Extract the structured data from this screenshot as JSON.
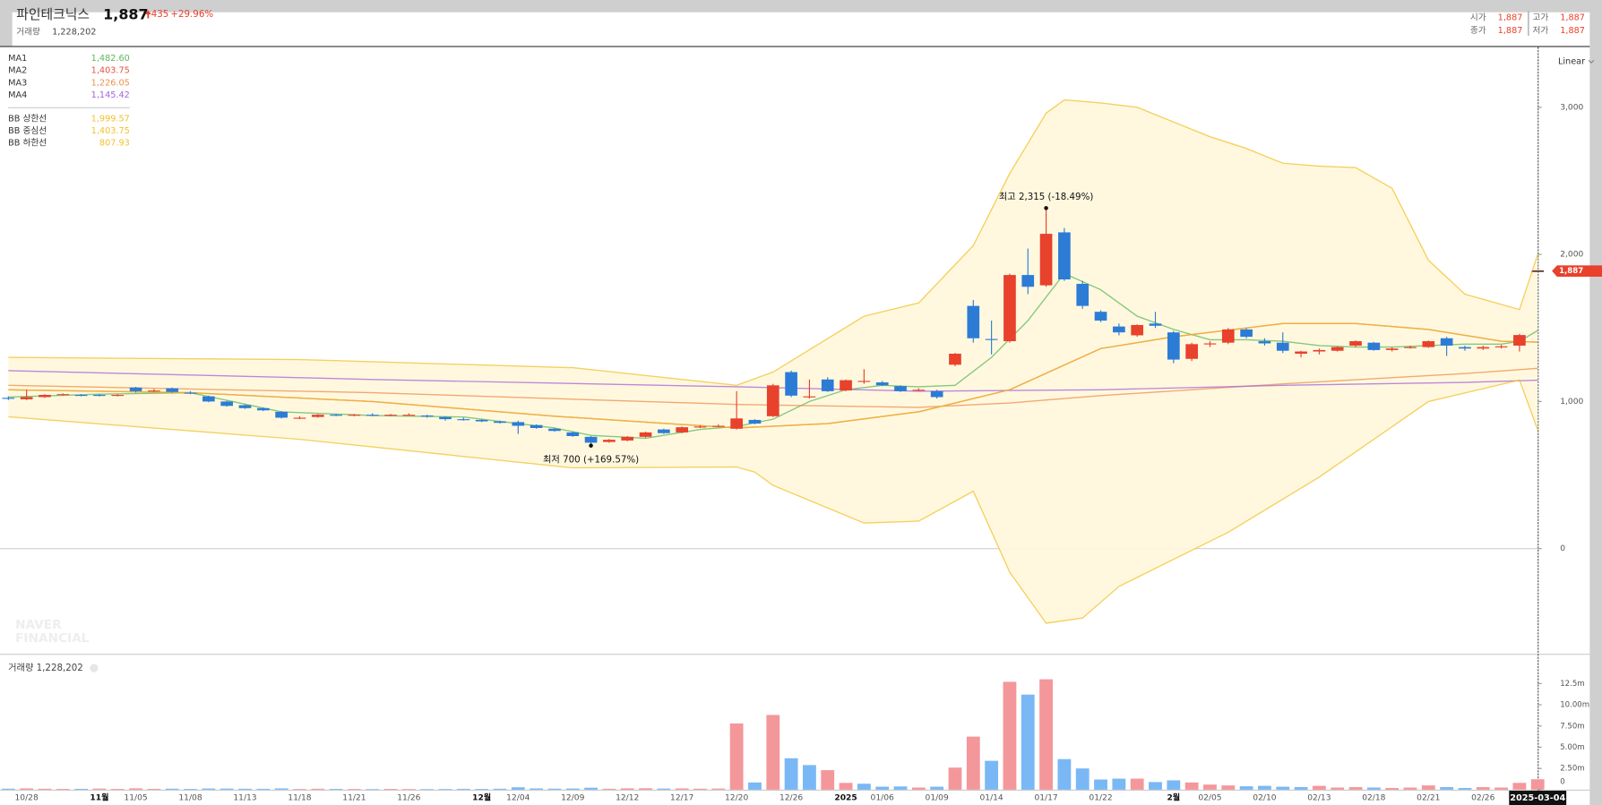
{
  "header": {
    "name": "파인테크닉스",
    "price": "1,887",
    "change": "435",
    "change_pct": "+29.96%",
    "volume_label": "거래량",
    "volume": "1,228,202",
    "quotes": [
      {
        "label": "시가",
        "value": "1,887"
      },
      {
        "label": "고가",
        "value": "1,887"
      },
      {
        "label": "종가",
        "value": "1,887"
      },
      {
        "label": "저가",
        "value": "1,887"
      }
    ]
  },
  "watermark": [
    "NAVER",
    "FINANCIAL"
  ],
  "chart_data": {
    "type": "candlestick",
    "scale": "Linear",
    "last_label": "1,887",
    "up_color": "#e8412c",
    "down_color": "#2c7cd6",
    "categories": [
      null,
      "10/28",
      null,
      null,
      null,
      "11월",
      null,
      "11/05",
      null,
      null,
      "11/08",
      null,
      null,
      "11/13",
      null,
      null,
      "11/18",
      null,
      null,
      "11/21",
      null,
      null,
      "11/26",
      null,
      null,
      null,
      "12월",
      null,
      "12/04",
      null,
      null,
      "12/09",
      null,
      null,
      "12/12",
      null,
      null,
      "12/17",
      null,
      null,
      "12/20",
      null,
      null,
      "12/26",
      null,
      null,
      "2025",
      null,
      "01/06",
      null,
      null,
      "01/09",
      null,
      null,
      "01/14",
      null,
      null,
      "01/17",
      null,
      null,
      "01/22",
      null,
      null,
      null,
      "2월",
      null,
      "02/05",
      null,
      null,
      "02/10",
      null,
      null,
      "02/13",
      null,
      null,
      "02/18",
      null,
      null,
      "02/21",
      null,
      null,
      "02/26",
      null,
      null,
      "2025-03-04"
    ],
    "open": [
      1025,
      1015,
      1030,
      1045,
      1045,
      1045,
      1040,
      1095,
      1070,
      1090,
      1060,
      1035,
      1000,
      975,
      955,
      930,
      890,
      895,
      910,
      905,
      910,
      905,
      910,
      905,
      895,
      880,
      875,
      865,
      860,
      840,
      815,
      790,
      760,
      725,
      735,
      760,
      810,
      790,
      830,
      830,
      815,
      875,
      900,
      1200,
      1030,
      1150,
      1075,
      1135,
      1130,
      1105,
      1080,
      1070,
      1250,
      1650,
      1425,
      1410,
      1860,
      1790,
      2150,
      1800,
      1610,
      1510,
      1450,
      1530,
      1470,
      1290,
      1390,
      1400,
      1490,
      1410,
      1400,
      1325,
      1340,
      1345,
      1380,
      1400,
      1350,
      1370,
      1370,
      1430,
      1370,
      1360,
      1370,
      1380,
      1887
    ],
    "high": [
      1035,
      1080,
      1050,
      1055,
      1050,
      1050,
      1050,
      1100,
      1085,
      1095,
      1070,
      1040,
      1005,
      980,
      960,
      935,
      900,
      915,
      915,
      915,
      920,
      915,
      920,
      910,
      900,
      890,
      880,
      870,
      870,
      845,
      820,
      795,
      765,
      745,
      765,
      795,
      815,
      830,
      840,
      845,
      1070,
      880,
      1120,
      1210,
      1150,
      1165,
      1150,
      1220,
      1140,
      1110,
      1090,
      1080,
      1330,
      1690,
      1550,
      1870,
      2040,
      2315,
      2180,
      1820,
      1620,
      1530,
      1525,
      1610,
      1480,
      1400,
      1410,
      1500,
      1500,
      1430,
      1470,
      1345,
      1360,
      1375,
      1415,
      1405,
      1370,
      1380,
      1415,
      1440,
      1380,
      1380,
      1385,
      1460,
      1887
    ],
    "low": [
      1010,
      1010,
      1025,
      1040,
      1035,
      1035,
      1035,
      1060,
      1065,
      1060,
      1050,
      995,
      965,
      950,
      935,
      885,
      880,
      890,
      900,
      900,
      900,
      900,
      905,
      890,
      870,
      870,
      860,
      850,
      780,
      815,
      795,
      760,
      700,
      720,
      730,
      755,
      780,
      785,
      820,
      825,
      810,
      845,
      895,
      1030,
      1020,
      1065,
      1070,
      1120,
      1105,
      1065,
      1070,
      1020,
      1240,
      1400,
      1320,
      1400,
      1730,
      1780,
      1820,
      1630,
      1540,
      1450,
      1440,
      1500,
      1260,
      1275,
      1370,
      1390,
      1430,
      1380,
      1330,
      1300,
      1320,
      1340,
      1370,
      1345,
      1340,
      1360,
      1365,
      1310,
      1345,
      1350,
      1360,
      1340,
      1887
    ],
    "close": [
      1020,
      1030,
      1045,
      1050,
      1040,
      1040,
      1045,
      1070,
      1075,
      1065,
      1055,
      1000,
      970,
      955,
      940,
      890,
      890,
      910,
      905,
      910,
      905,
      910,
      910,
      900,
      880,
      875,
      865,
      855,
      835,
      820,
      800,
      765,
      720,
      740,
      760,
      790,
      785,
      825,
      830,
      835,
      885,
      850,
      1110,
      1040,
      1035,
      1070,
      1145,
      1140,
      1110,
      1070,
      1080,
      1030,
      1325,
      1430,
      1420,
      1860,
      1780,
      2140,
      1830,
      1650,
      1550,
      1470,
      1520,
      1515,
      1285,
      1390,
      1395,
      1490,
      1440,
      1395,
      1345,
      1340,
      1350,
      1370,
      1410,
      1350,
      1360,
      1370,
      1410,
      1380,
      1360,
      1370,
      1375,
      1452,
      1887
    ],
    "ylim": [
      -715,
      3403
    ],
    "yticks": [
      0,
      {
        "value": 1000,
        "label": "1,000"
      },
      {
        "value": 2000,
        "label": "2,000"
      },
      {
        "value": 3000,
        "label": "3,000"
      }
    ],
    "grid": false,
    "indicators": [
      {
        "name": "MA1",
        "value_label": "1,482.60",
        "color": "#5cb85c",
        "x": [
          0,
          5,
          10,
          15,
          20,
          25,
          30,
          32,
          35,
          38,
          40,
          42,
          44,
          46,
          48,
          50,
          52,
          54,
          56,
          58,
          60,
          62,
          64,
          66,
          68,
          70,
          72,
          74,
          76,
          78,
          80,
          82,
          83,
          84
        ],
        "values": [
          1030,
          1050,
          1060,
          930,
          905,
          895,
          820,
          770,
          750,
          810,
          830,
          880,
          1000,
          1080,
          1110,
          1100,
          1110,
          1300,
          1550,
          1870,
          1760,
          1580,
          1490,
          1420,
          1420,
          1410,
          1380,
          1370,
          1370,
          1380,
          1390,
          1390,
          1410,
          1482.6
        ]
      },
      {
        "name": "MA2",
        "value_label": "1,403.75",
        "color": "#e5533c",
        "x": [
          0,
          10,
          20,
          30,
          35,
          40,
          45,
          50,
          55,
          60,
          64,
          70,
          74,
          78,
          82,
          84
        ],
        "values": [
          1080,
          1060,
          1000,
          900,
          860,
          820,
          850,
          930,
          1080,
          1360,
          1440,
          1530,
          1530,
          1490,
          1410,
          1403.75
        ]
      },
      {
        "name": "MA3",
        "value_label": "1,226.05",
        "color": "#ee8f4a",
        "x": [
          0,
          20,
          40,
          50,
          55,
          60,
          70,
          80,
          84
        ],
        "values": [
          1110,
          1060,
          980,
          960,
          990,
          1040,
          1120,
          1190,
          1226.05
        ]
      },
      {
        "name": "MA4",
        "value_label": "1,145.42",
        "color": "#a463d8",
        "x": [
          0,
          20,
          40,
          50,
          60,
          70,
          80,
          84
        ],
        "values": [
          1210,
          1150,
          1100,
          1070,
          1080,
          1110,
          1130,
          1145.42
        ]
      },
      {
        "name": "BB 상한선",
        "value_label": "1,999.57",
        "color": "#f2c12e",
        "x": [
          0,
          16,
          31,
          40,
          42,
          47,
          50,
          53,
          55,
          57,
          58,
          60,
          62,
          64,
          66,
          68,
          70,
          72,
          74,
          76,
          78,
          80,
          83,
          84
        ],
        "values": [
          1300,
          1285,
          1230,
          1110,
          1200,
          1580,
          1670,
          2060,
          2550,
          2960,
          3050,
          3030,
          3000,
          2900,
          2800,
          2720,
          2620,
          2600,
          2590,
          2450,
          1960,
          1730,
          1625,
          1999.57
        ]
      },
      {
        "name": "BB 중심선",
        "value_label": "1,403.75",
        "color": "#f2c12e",
        "x": [
          0,
          10,
          20,
          30,
          35,
          40,
          45,
          50,
          55,
          60,
          64,
          70,
          74,
          78,
          82,
          84
        ],
        "values": [
          1080,
          1060,
          1000,
          900,
          860,
          820,
          850,
          930,
          1080,
          1360,
          1440,
          1530,
          1530,
          1490,
          1410,
          1403.75
        ]
      },
      {
        "name": "BB 하한선",
        "value_label": "807.93",
        "color": "#f2c12e",
        "x": [
          0,
          16,
          31,
          40,
          41,
          42,
          47,
          50,
          53,
          55,
          57,
          59,
          61,
          67,
          72,
          78,
          83,
          84
        ],
        "values": [
          896,
          743,
          549,
          555,
          520,
          430,
          174,
          187,
          390,
          -160,
          -507,
          -472,
          -257,
          111,
          486,
          1000,
          1146,
          807.93
        ]
      }
    ],
    "annotations": [
      {
        "text": "최고 2,315 (-18.49%)",
        "value": 2315
      },
      {
        "text": "최저 700 (+169.57%)",
        "value": 700
      }
    ],
    "volume": {
      "type": "bar",
      "title": "거래량 1,228,202",
      "up_color": "#f4979b",
      "down_color": "#7ab8f5",
      "values": [
        120000,
        150000,
        110000,
        90000,
        100000,
        130000,
        90000,
        160000,
        100000,
        120000,
        90000,
        140000,
        130000,
        110000,
        100000,
        150000,
        80000,
        110000,
        90000,
        80000,
        70000,
        90000,
        80000,
        70000,
        80000,
        100000,
        90000,
        110000,
        280000,
        150000,
        120000,
        140000,
        230000,
        110000,
        160000,
        170000,
        130000,
        150000,
        120000,
        130000,
        7800000,
        850000,
        8800000,
        3700000,
        2900000,
        2300000,
        800000,
        700000,
        350000,
        380000,
        250000,
        350000,
        2600000,
        6250000,
        3400000,
        12700000,
        11200000,
        13000000,
        3600000,
        2500000,
        1200000,
        1300000,
        1300000,
        900000,
        1100000,
        850000,
        600000,
        500000,
        400000,
        450000,
        350000,
        300000,
        450000,
        250000,
        300000,
        250000,
        200000,
        250000,
        500000,
        300000,
        200000,
        300000,
        250000,
        800000,
        1228202
      ],
      "ylim": [
        0,
        15400000
      ],
      "yticks": [
        0,
        {
          "value": 2500000,
          "label": "2.50m"
        },
        {
          "value": 5000000,
          "label": "5.00m"
        },
        {
          "value": 7500000,
          "label": "7.50m"
        },
        {
          "value": 10000000,
          "label": "10.00m"
        },
        {
          "value": 12500000,
          "label": "12.5m"
        }
      ]
    }
  }
}
